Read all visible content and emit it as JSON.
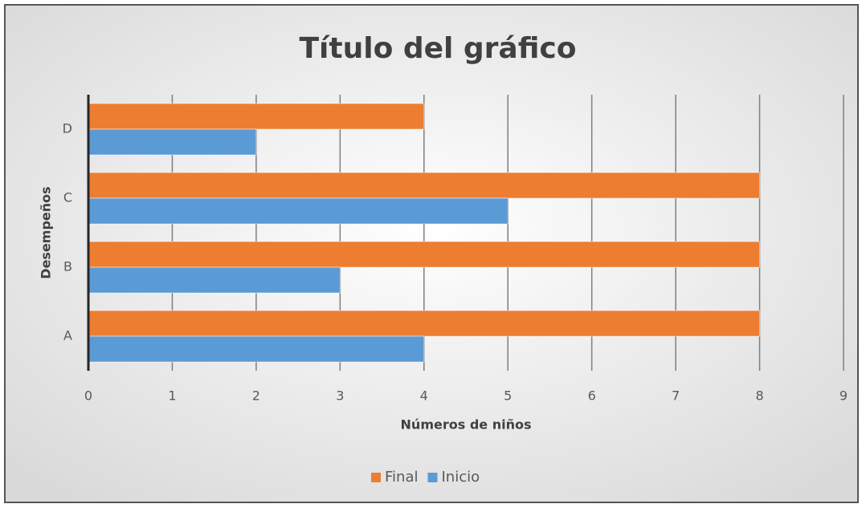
{
  "chart_data": {
    "type": "barh",
    "title": "Título del gráfico",
    "x_label": "Números de niños",
    "y_label": "Desempeños",
    "categories": [
      "A",
      "B",
      "C",
      "D"
    ],
    "series": [
      {
        "name": "Final",
        "color": "#ed7d31",
        "values": [
          8,
          8,
          8,
          4
        ]
      },
      {
        "name": "Inicio",
        "color": "#5b9bd5",
        "values": [
          4,
          3,
          5,
          2
        ]
      }
    ],
    "xlim": [
      0,
      9
    ],
    "xticks": [
      0,
      1,
      2,
      3,
      4,
      5,
      6,
      7,
      8,
      9
    ],
    "grid": true,
    "legend": "bottom"
  }
}
